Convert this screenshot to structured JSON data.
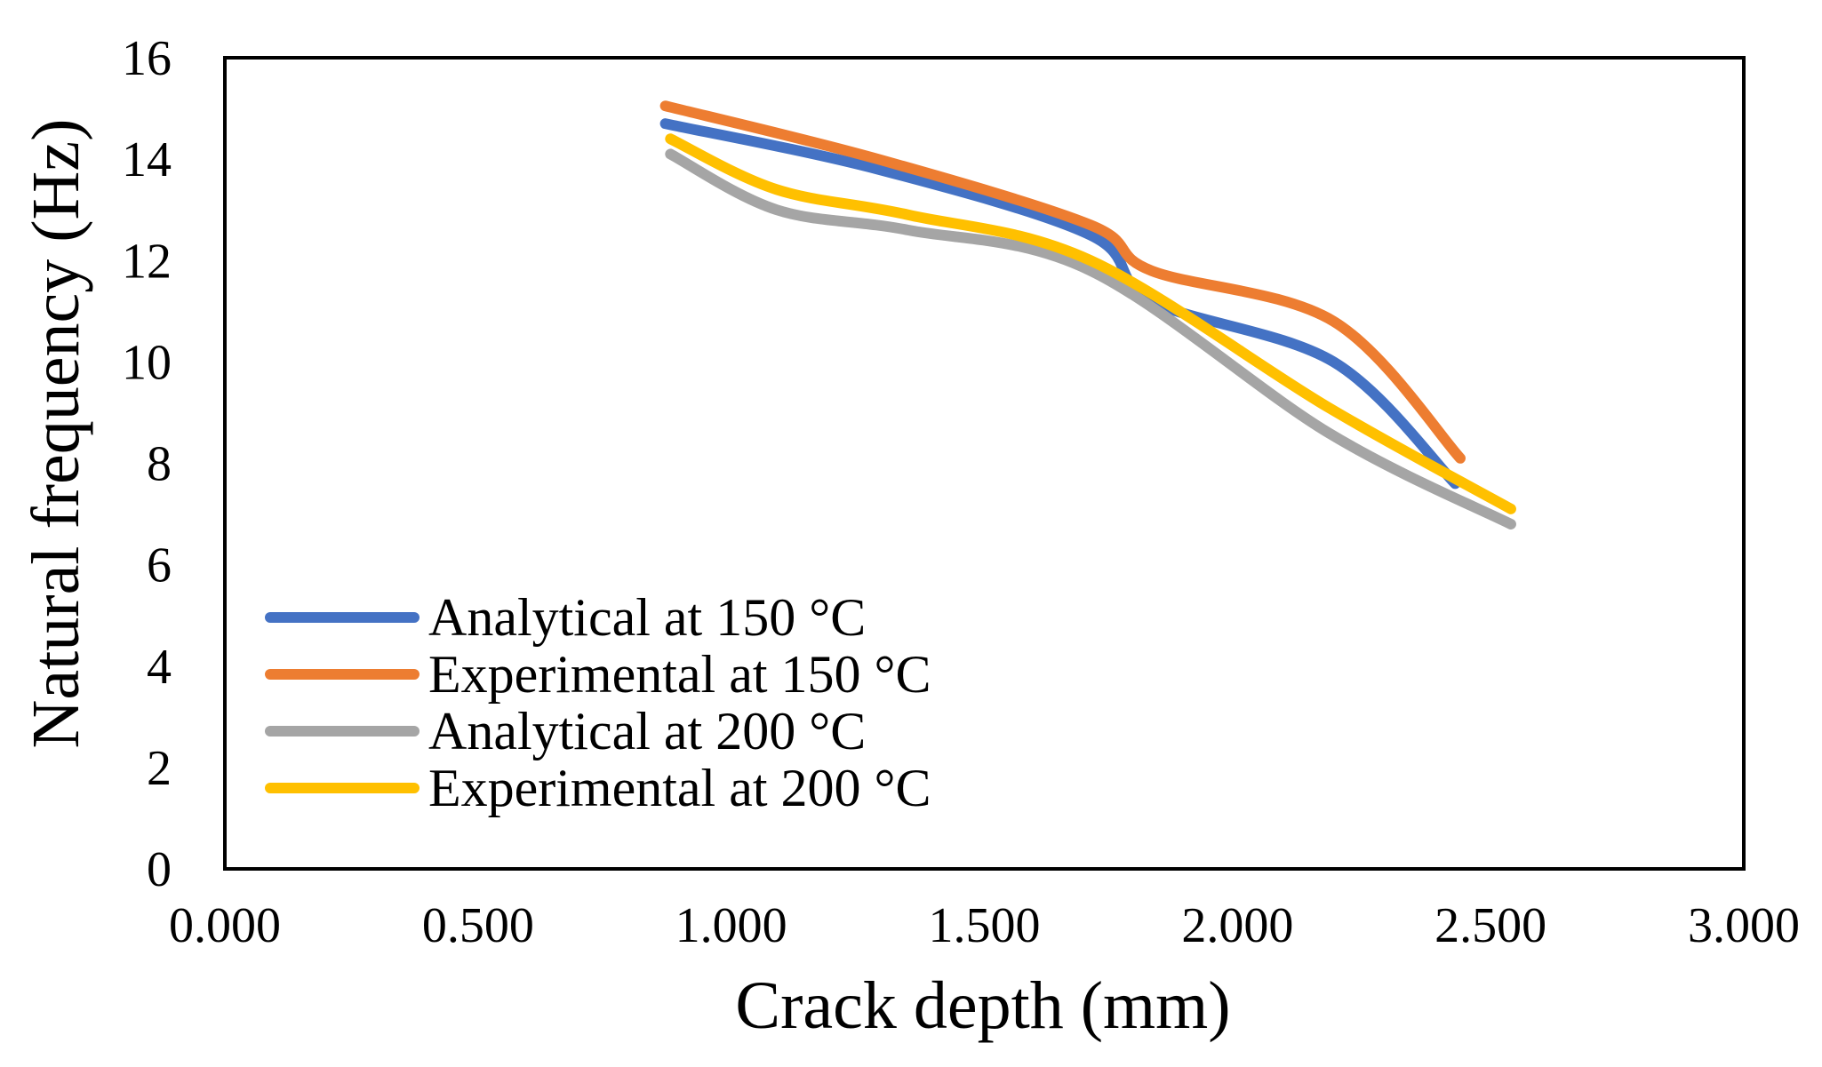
{
  "chart_data": {
    "type": "line",
    "title": "",
    "xlabel": "Crack depth (mm)",
    "ylabel": "Natural frequency (Hz)",
    "xlim": [
      0,
      3
    ],
    "ylim": [
      0,
      16
    ],
    "xticks": [
      0,
      0.5,
      1,
      1.5,
      2,
      2.5,
      3
    ],
    "xtick_labels": [
      "0.000",
      "0.500",
      "1.000",
      "1.500",
      "2.000",
      "2.500",
      "3.000"
    ],
    "yticks": [
      0,
      2,
      4,
      6,
      8,
      10,
      12,
      14,
      16
    ],
    "ytick_labels": [
      "0",
      "2",
      "4",
      "6",
      "8",
      "10",
      "12",
      "14",
      "16"
    ],
    "grid": false,
    "legend_position": "bottom-left",
    "smooth": true,
    "series": [
      {
        "name": "Analytical at 150 °C",
        "color": "#4472C4",
        "x": [
          0.87,
          1.29,
          1.71,
          1.83,
          2.19,
          2.43
        ],
        "y": [
          14.7,
          13.8,
          12.5,
          11.2,
          10.0,
          7.6
        ]
      },
      {
        "name": "Experimental at 150 °C",
        "color": "#ED7D31",
        "x": [
          0.87,
          1.29,
          1.71,
          1.83,
          2.19,
          2.44
        ],
        "y": [
          15.05,
          14.0,
          12.7,
          11.8,
          10.8,
          8.1
        ]
      },
      {
        "name": "Analytical at 200 °C",
        "color": "#A5A5A5",
        "x": [
          0.88,
          1.09,
          1.35,
          1.71,
          2.18,
          2.54
        ],
        "y": [
          14.1,
          13.0,
          12.6,
          11.8,
          8.6,
          6.8
        ]
      },
      {
        "name": "Experimental at 200 °C",
        "color": "#FFC000",
        "x": [
          0.88,
          1.09,
          1.35,
          1.71,
          2.18,
          2.54
        ],
        "y": [
          14.4,
          13.4,
          12.9,
          12.0,
          9.1,
          7.1
        ]
      }
    ]
  }
}
